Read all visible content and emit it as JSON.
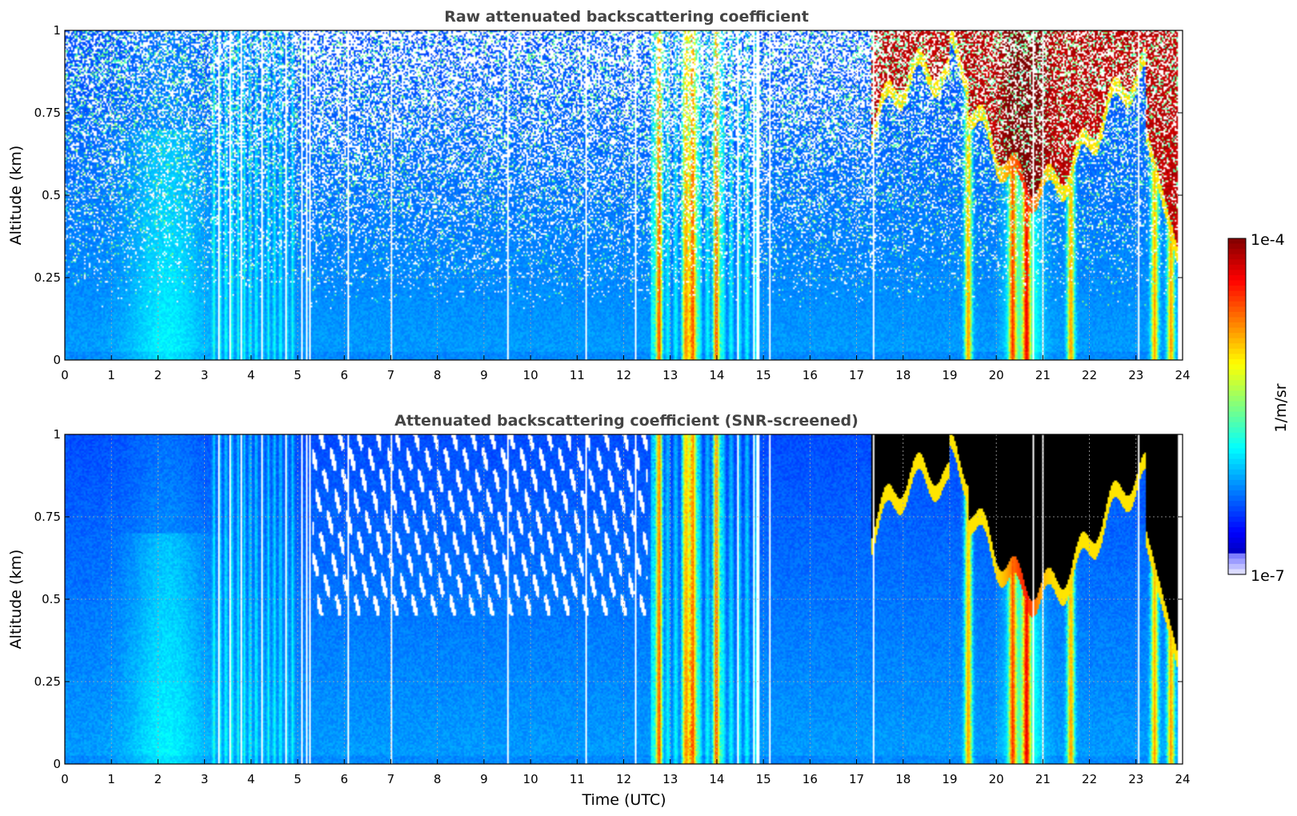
{
  "colorbar": {
    "max_label": "1e-4",
    "min_label": "1e-7",
    "unit_label": "1/m/sr",
    "range": [
      1e-07,
      0.0001
    ],
    "scale": "log",
    "colormap": "jet"
  },
  "chart_data": [
    {
      "type": "heatmap",
      "title": "Raw attenuated backscattering coefficient",
      "xlabel": "",
      "ylabel": "Altitude (km)",
      "xlim": [
        0,
        24
      ],
      "ylim": [
        0,
        1
      ],
      "xticks": [
        "0",
        "1",
        "2",
        "3",
        "4",
        "5",
        "6",
        "7",
        "8",
        "9",
        "10",
        "11",
        "12",
        "13",
        "14",
        "15",
        "16",
        "17",
        "18",
        "19",
        "20",
        "21",
        "22",
        "23",
        "24"
      ],
      "yticks": [
        "0",
        "0.25",
        "0.5",
        "0.75",
        "1"
      ],
      "grid": true,
      "features": {
        "gaps_utc": [
          3.3,
          3.55,
          3.8,
          4.25,
          4.75,
          5.1,
          5.2,
          5.25,
          6.1,
          7.0,
          9.5,
          11.2,
          12.25,
          14.45,
          14.8,
          14.85,
          14.9,
          15.15,
          17.35,
          20.8,
          21.0,
          23.05
        ],
        "aerosol_column_peaks_utc": [
          12.75,
          13.35,
          13.5,
          14.0,
          19.4,
          20.35,
          20.65,
          21.6,
          23.4,
          23.75
        ],
        "high_cloud_utc": [
          17.4,
          23.8
        ],
        "data_end_utc": 23.9
      }
    },
    {
      "type": "heatmap",
      "title": "Attenuated backscattering coefficient (SNR-screened)",
      "xlabel": "Time (UTC)",
      "ylabel": "Altitude (km)",
      "xlim": [
        0,
        24
      ],
      "ylim": [
        0,
        1
      ],
      "xticks": [
        "0",
        "1",
        "2",
        "3",
        "4",
        "5",
        "6",
        "7",
        "8",
        "9",
        "10",
        "11",
        "12",
        "13",
        "14",
        "15",
        "16",
        "17",
        "18",
        "19",
        "20",
        "21",
        "22",
        "23",
        "24"
      ],
      "yticks": [
        "0",
        "0.25",
        "0.5",
        "0.75",
        "1"
      ],
      "grid": true,
      "features": {
        "gaps_utc": [
          3.3,
          3.55,
          3.8,
          4.25,
          4.75,
          5.1,
          5.2,
          5.25,
          6.1,
          7.0,
          9.5,
          11.2,
          12.25,
          14.45,
          14.8,
          14.85,
          14.9,
          15.15,
          17.35,
          20.8,
          21.0,
          23.05
        ],
        "aerosol_column_peaks_utc": [
          12.75,
          13.35,
          13.5,
          14.0,
          19.4,
          20.35,
          20.65,
          21.6,
          23.4,
          23.75
        ],
        "screened_saturated_color": "#000000",
        "data_end_utc": 23.9
      }
    }
  ]
}
